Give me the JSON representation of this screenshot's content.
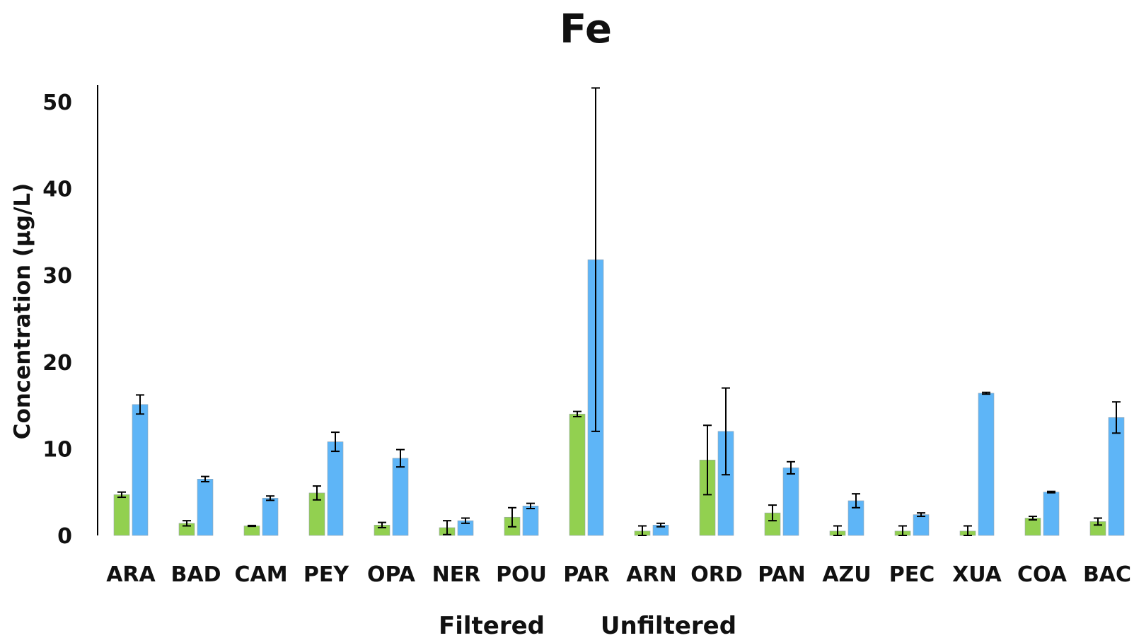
{
  "chart_data": {
    "type": "bar",
    "title": "Fe",
    "ylabel": "Concentration (µg/L)",
    "xlabel": "",
    "ylim": [
      0,
      52
    ],
    "yticks": [
      0,
      10,
      20,
      30,
      40,
      50
    ],
    "grid": false,
    "legend_position": "bottom",
    "categories": [
      "ARA",
      "BAD",
      "CAM",
      "PEY",
      "OPA",
      "NER",
      "POU",
      "PAR",
      "ARN",
      "ORD",
      "PAN",
      "AZU",
      "PEC",
      "XUA",
      "COA",
      "BAC"
    ],
    "series": [
      {
        "name": "Filtered",
        "color": "#92d050",
        "values": [
          4.7,
          1.4,
          1.1,
          4.9,
          1.2,
          0.9,
          2.1,
          14.0,
          0.5,
          8.7,
          2.6,
          0.5,
          0.5,
          0.5,
          2.0,
          1.6
        ],
        "errors": [
          0.3,
          0.3,
          0.05,
          0.8,
          0.3,
          0.8,
          1.1,
          0.3,
          0.6,
          4.0,
          0.9,
          0.6,
          0.6,
          0.6,
          0.2,
          0.4
        ]
      },
      {
        "name": "Unfiltered",
        "color": "#5eb5f7",
        "values": [
          15.1,
          6.5,
          4.3,
          10.8,
          8.9,
          1.7,
          3.4,
          31.8,
          1.2,
          12.0,
          7.8,
          4.0,
          2.4,
          16.4,
          5.0,
          13.6
        ],
        "errors": [
          1.1,
          0.3,
          0.25,
          1.1,
          1.0,
          0.3,
          0.3,
          19.8,
          0.2,
          5.0,
          0.7,
          0.8,
          0.2,
          0.1,
          0.08,
          1.8
        ]
      }
    ]
  }
}
